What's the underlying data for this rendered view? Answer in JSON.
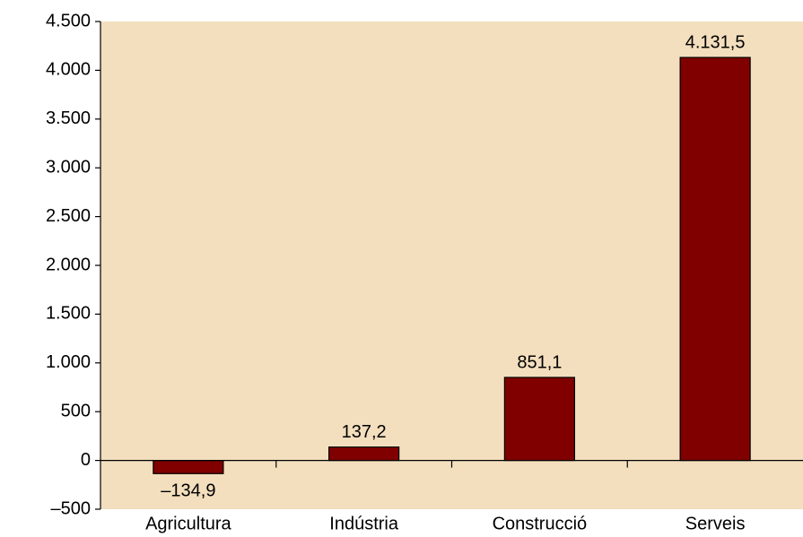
{
  "chart_data": {
    "type": "bar",
    "categories": [
      "Agricultura",
      "Indústria",
      "Construcció",
      "Serveis"
    ],
    "values": [
      -134.9,
      137.2,
      851.1,
      4131.5
    ],
    "value_labels": [
      "–134,9",
      "137,2",
      "851,1",
      "4.131,5"
    ],
    "color": "#800000",
    "ylim": [
      -500,
      4500
    ],
    "yticks": [
      {
        "value": -500,
        "label": "–500"
      },
      0,
      500,
      {
        "value": 1000,
        "label": "1.000"
      },
      {
        "value": 1500,
        "label": "1.500"
      },
      {
        "value": 2000,
        "label": "2.000"
      },
      {
        "value": 2500,
        "label": "2.500"
      },
      {
        "value": 3000,
        "label": "3.000"
      },
      {
        "value": 3500,
        "label": "3.500"
      },
      {
        "value": 4000,
        "label": "4.000"
      },
      {
        "value": 4500,
        "label": "4.500"
      }
    ]
  }
}
